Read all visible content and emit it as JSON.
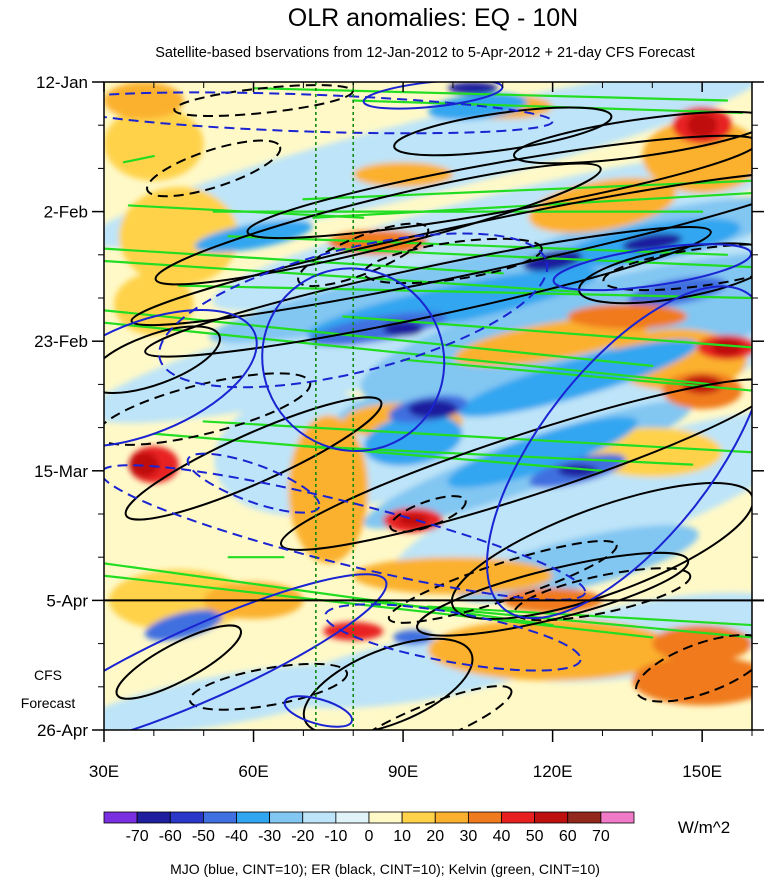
{
  "chart_data": {
    "type": "heatmap",
    "title": "OLR anomalies: EQ - 10N",
    "subtitle": "Satellite-based bservations from 12-Jan-2012 to 5-Apr-2012 + 21-day CFS Forecast",
    "x_axis": {
      "label": "",
      "range": [
        30,
        160
      ],
      "tick_values": [
        30,
        60,
        90,
        120,
        150
      ],
      "tick_labels": [
        "30E",
        "60E",
        "90E",
        "120E",
        "150E"
      ],
      "minor_step": 10
    },
    "y_axis": {
      "label": "",
      "range_days": [
        0,
        105
      ],
      "tick_days": [
        0,
        21,
        42,
        63,
        84,
        105
      ],
      "tick_labels": [
        "12-Jan",
        "2-Feb",
        "23-Feb",
        "15-Mar",
        "5-Apr",
        "26-Apr"
      ],
      "minor_step_days": 7,
      "direction": "downward"
    },
    "forecast": {
      "start_day": 84,
      "label_line1": "CFS",
      "label_line2": "Forecast"
    },
    "reference_longitudes": [
      72.5,
      80
    ],
    "colorbar": {
      "levels": [
        -70,
        -60,
        -50,
        -40,
        -30,
        -20,
        -10,
        0,
        10,
        20,
        30,
        40,
        50,
        60,
        70
      ],
      "tick_labels": [
        "-70",
        "-60",
        "-50",
        "-40",
        "-30",
        "-20",
        "-10",
        "0",
        "10",
        "20",
        "30",
        "40",
        "50",
        "60",
        "70"
      ],
      "colors": [
        "#7a2fe0",
        "#1e1e9e",
        "#2a37c8",
        "#3f6fe0",
        "#31a6f0",
        "#82c6f2",
        "#bde4f8",
        "#e0f3f8",
        "#fff9c8",
        "#ffd24a",
        "#fbb12e",
        "#f07a1e",
        "#e82020",
        "#bf1010",
        "#93281c",
        "#f07ac8"
      ],
      "units": "W/m^2"
    },
    "caption": "MJO (blue, CINT=10); ER (black, CINT=10); Kelvin (green, CINT=10)",
    "series": [
      {
        "name": "Kelvin",
        "color": "#22dd22",
        "segments": [
          [
            [
              60,
              1
            ],
            [
              155,
              3
            ]
          ],
          [
            [
              80,
              3
            ],
            [
              158,
              5
            ]
          ],
          [
            [
              34,
              13
            ],
            [
              40,
              12
            ]
          ],
          [
            [
              35,
              20
            ],
            [
              82,
              22
            ]
          ],
          [
            [
              70,
              19
            ],
            [
              160,
              16
            ]
          ],
          [
            [
              52,
              21
            ],
            [
              150,
              21
            ]
          ],
          [
            [
              72,
              22
            ],
            [
              160,
              18
            ]
          ],
          [
            [
              30,
              27
            ],
            [
              110,
              31
            ]
          ],
          [
            [
              30,
              29
            ],
            [
              125,
              34
            ]
          ],
          [
            [
              55,
              25
            ],
            [
              155,
              28
            ]
          ],
          [
            [
              75,
              27
            ],
            [
              160,
              30
            ]
          ],
          [
            [
              45,
              33
            ],
            [
              160,
              35
            ]
          ],
          [
            [
              30,
              37
            ],
            [
              140,
              46
            ]
          ],
          [
            [
              30,
              39
            ],
            [
              152,
              49
            ]
          ],
          [
            [
              78,
              38
            ],
            [
              160,
              43
            ]
          ],
          [
            [
              90,
              45
            ],
            [
              160,
              50
            ]
          ],
          [
            [
              50,
              55
            ],
            [
              160,
              60
            ]
          ],
          [
            [
              40,
              57
            ],
            [
              130,
              63
            ]
          ],
          [
            [
              70,
              59
            ],
            [
              148,
              62
            ]
          ],
          [
            [
              55,
              77
            ],
            [
              66,
              77
            ]
          ],
          [
            [
              30,
              78
            ],
            [
              120,
              88
            ]
          ],
          [
            [
              30,
              80
            ],
            [
              140,
              90
            ]
          ],
          [
            [
              80,
              84
            ],
            [
              160,
              90
            ]
          ],
          [
            [
              95,
              85
            ],
            [
              160,
              88
            ]
          ]
        ]
      },
      {
        "name": "ER",
        "color": "#000000",
        "pos_ellipses": [
          [
            110,
            8,
            22,
            3,
            -8
          ],
          [
            138,
            9,
            26,
            3,
            -8
          ],
          [
            110,
            17,
            52,
            4,
            -10
          ],
          [
            85,
            23,
            46,
            4,
            -14
          ],
          [
            104,
            27,
            70,
            4,
            -12
          ],
          [
            95,
            34,
            58,
            4,
            -12
          ],
          [
            145,
            31,
            20,
            4,
            -10
          ],
          [
            40,
            45,
            14,
            4,
            -20
          ],
          [
            60,
            61,
            28,
            4,
            -24
          ],
          [
            115,
            62,
            52,
            5,
            -18
          ],
          [
            130,
            76,
            32,
            7,
            -20
          ],
          [
            120,
            83,
            28,
            4,
            -14
          ],
          [
            45,
            94,
            14,
            3,
            -28
          ],
          [
            87,
            98,
            18,
            6,
            -22
          ]
        ],
        "neg_ellipses": [
          [
            62,
            3,
            18,
            2,
            -6
          ],
          [
            52,
            14,
            14,
            3,
            -18
          ],
          [
            82,
            28,
            14,
            3,
            -22
          ],
          [
            100,
            29,
            18,
            3,
            -8
          ],
          [
            150,
            30,
            20,
            3,
            -8
          ],
          [
            50,
            53,
            22,
            4,
            -14
          ],
          [
            95,
            70,
            8,
            2,
            -20
          ],
          [
            110,
            81,
            24,
            3,
            -18
          ],
          [
            150,
            95,
            14,
            4,
            -20
          ],
          [
            63,
            98,
            16,
            3,
            -10
          ],
          [
            95,
            104,
            18,
            3,
            -22
          ],
          [
            130,
            83,
            18,
            3,
            -12
          ]
        ]
      },
      {
        "name": "MJO",
        "color": "#1a24d2",
        "pos_ellipses": [
          [
            96,
            2,
            14,
            2,
            -6
          ],
          [
            140,
            30,
            20,
            3,
            -8
          ],
          [
            38,
            48,
            24,
            9,
            -22
          ],
          [
            80,
            45,
            18,
            15,
            -42
          ],
          [
            135,
            60,
            40,
            14,
            -52
          ],
          [
            50,
            94,
            40,
            6,
            -24
          ],
          [
            73,
            102,
            7,
            2,
            16
          ]
        ],
        "neg_ellipses": [
          [
            70,
            5,
            50,
            3,
            2
          ],
          [
            80,
            37,
            40,
            10,
            -14
          ],
          [
            60,
            65,
            14,
            3,
            20
          ],
          [
            78,
            73,
            50,
            5,
            14
          ],
          [
            100,
            90,
            26,
            4,
            10
          ]
        ]
      }
    ]
  }
}
